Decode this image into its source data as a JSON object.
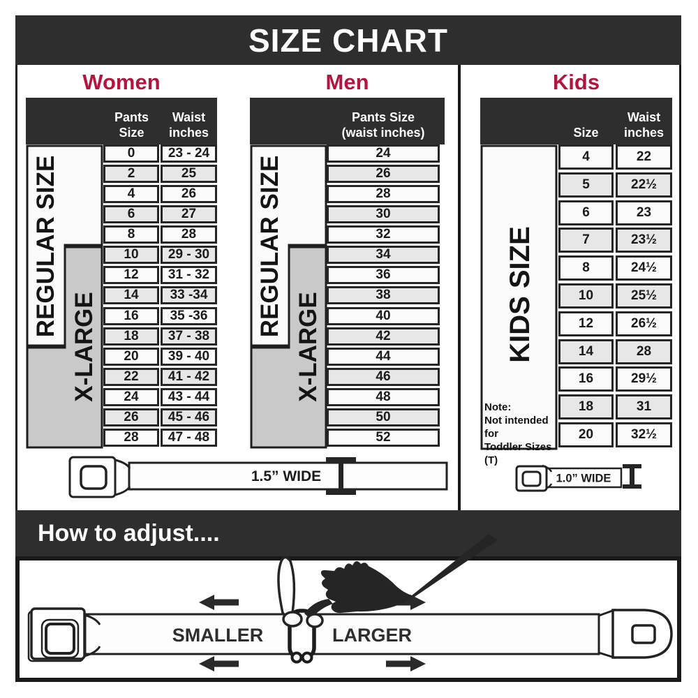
{
  "title": "SIZE CHART",
  "colors": {
    "dark_bar": "#2e2e2e",
    "heading_red": "#b11640",
    "row_light": "#fbfbfb",
    "row_gray": "#e7e7e7",
    "xlarge_gray": "#c9c9c9",
    "line_black": "#1a1a1a"
  },
  "sections": {
    "women": {
      "heading": "Women",
      "col_headers": {
        "pants": "Pants Size",
        "waist_line1": "Waist",
        "waist_line2": "inches"
      },
      "labels": {
        "regular": "REGULAR SIZE",
        "xlarge": "X-LARGE"
      },
      "rows": [
        [
          "0",
          "23 - 24"
        ],
        [
          "2",
          "25"
        ],
        [
          "4",
          "26"
        ],
        [
          "6",
          "27"
        ],
        [
          "8",
          "28"
        ],
        [
          "10",
          "29 - 30"
        ],
        [
          "12",
          "31 - 32"
        ],
        [
          "14",
          "33 -34"
        ],
        [
          "16",
          "35 -36"
        ],
        [
          "18",
          "37 - 38"
        ],
        [
          "20",
          "39 - 40"
        ],
        [
          "22",
          "41 - 42"
        ],
        [
          "24",
          "43 - 44"
        ],
        [
          "26",
          "45 - 46"
        ],
        [
          "28",
          "47 - 48"
        ]
      ]
    },
    "men": {
      "heading": "Men",
      "col_headers": {
        "line1": "Pants Size",
        "line2": "(waist inches)"
      },
      "labels": {
        "regular": "REGULAR SIZE",
        "xlarge": "X-LARGE"
      },
      "rows": [
        "24",
        "26",
        "28",
        "30",
        "32",
        "34",
        "36",
        "38",
        "40",
        "42",
        "44",
        "46",
        "48",
        "50",
        "52"
      ]
    },
    "kids": {
      "heading": "Kids",
      "col_headers": {
        "size": "Size",
        "waist_line1": "Waist",
        "waist_line2": "inches"
      },
      "label": "KIDS SIZE",
      "note": {
        "line1": "Note:",
        "line2": "Not intended for",
        "line3": "Toddler Sizes (T)"
      },
      "rows": [
        [
          "4",
          "22"
        ],
        [
          "5",
          "22½"
        ],
        [
          "6",
          "23"
        ],
        [
          "7",
          "23½"
        ],
        [
          "8",
          "24½"
        ],
        [
          "10",
          "25½"
        ],
        [
          "12",
          "26½"
        ],
        [
          "14",
          "28"
        ],
        [
          "16",
          "29½"
        ],
        [
          "18",
          "31"
        ],
        [
          "20",
          "32½"
        ]
      ]
    }
  },
  "belts": {
    "adult_width_label": "1.5” WIDE",
    "kids_width_label": "1.0” WIDE"
  },
  "how_to_adjust": {
    "heading": "How to adjust....",
    "smaller": "SMALLER",
    "larger": "LARGER"
  }
}
